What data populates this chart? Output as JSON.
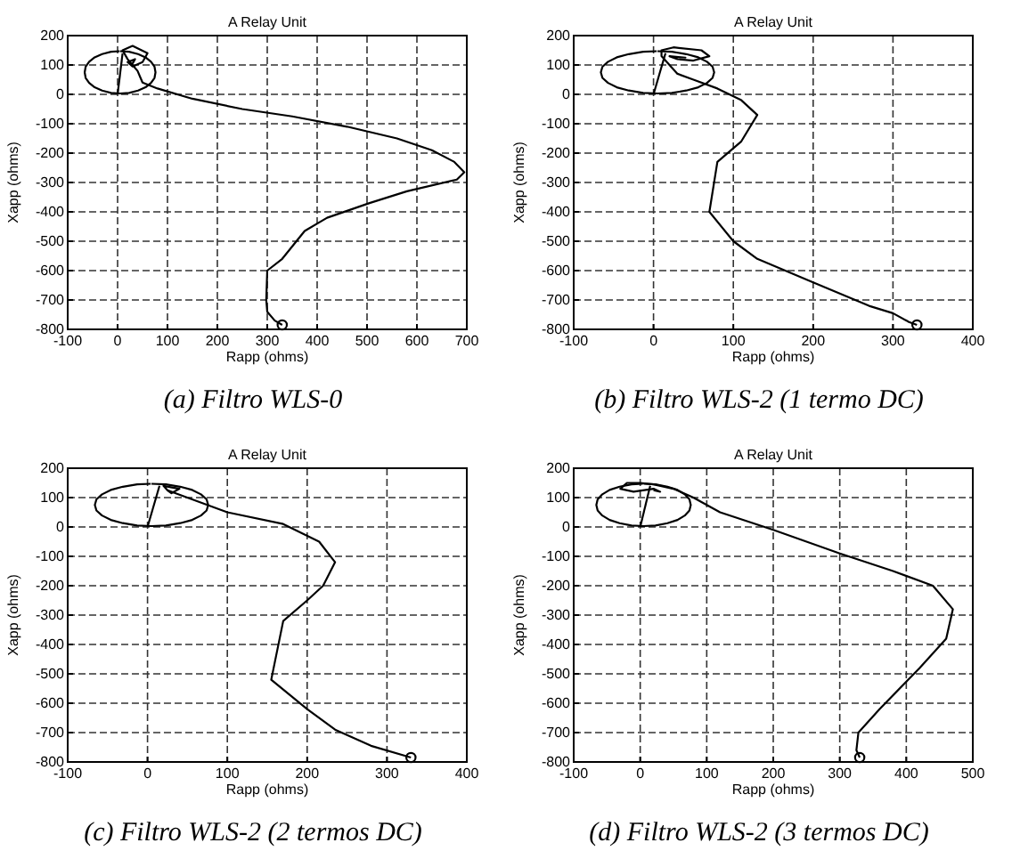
{
  "chart_data": [
    {
      "type": "line",
      "title": "A Relay Unit",
      "xlabel": "Rapp (ohms)",
      "ylabel": "Xapp (ohms)",
      "annotations": [
        "(a) Filtro WLS-0"
      ],
      "xlim": [
        -100,
        700
      ],
      "xticks": [
        -100,
        0,
        100,
        200,
        300,
        400,
        500,
        600,
        700
      ],
      "ylim": [
        -800,
        200
      ],
      "yticks": [
        -800,
        -700,
        -600,
        -500,
        -400,
        -300,
        -200,
        -100,
        0,
        100,
        200
      ],
      "grid": true,
      "marker": "none",
      "line_style": "solid",
      "series": [
        {
          "color": "#000000",
          "x": [
            330,
            315,
            300,
            298,
            300,
            330,
            375,
            420,
            505,
            580,
            680,
            695,
            675,
            630,
            560,
            460,
            350,
            250,
            150,
            80,
            50,
            40,
            30,
            20,
            10,
            30,
            60,
            50,
            30,
            20,
            35,
            30
          ],
          "values": [
            -785,
            -770,
            -740,
            -700,
            -600,
            -560,
            -465,
            -420,
            -370,
            -330,
            -290,
            -265,
            -230,
            -190,
            -150,
            -110,
            -75,
            -50,
            -15,
            20,
            40,
            80,
            100,
            120,
            150,
            165,
            140,
            110,
            95,
            110,
            120,
            105
          ]
        },
        {
          "color": "#000000",
          "x": [
            0,
            10
          ],
          "values": [
            0,
            140
          ]
        },
        {
          "color": "#000000",
          "x": [
            5,
            23,
            41,
            56,
            67,
            74,
            76,
            74,
            67,
            56,
            41,
            23,
            5,
            -13,
            -31,
            -46,
            -57,
            -64,
            -66,
            -64,
            -57,
            -46,
            -31,
            -13,
            4
          ],
          "values": [
            147,
            145,
            137,
            126,
            111,
            94,
            75,
            56,
            39,
            24,
            13,
            5,
            3,
            5,
            13,
            24,
            39,
            56,
            75,
            94,
            111,
            126,
            137,
            145,
            147
          ]
        },
        {
          "type": "scatter",
          "color": "#000000",
          "marker": "circle",
          "x": [
            330
          ],
          "values": [
            -785
          ]
        }
      ]
    },
    {
      "type": "line",
      "title": "A Relay Unit",
      "xlabel": "Rapp (ohms)",
      "ylabel": "Xapp (ohms)",
      "annotations": [
        "(b) Filtro WLS-2 (1 termo DC)"
      ],
      "xlim": [
        -100,
        400
      ],
      "xticks": [
        -100,
        0,
        100,
        200,
        300,
        400
      ],
      "ylim": [
        -800,
        200
      ],
      "yticks": [
        -800,
        -700,
        -600,
        -500,
        -400,
        -300,
        -200,
        -100,
        0,
        100,
        200
      ],
      "grid": true,
      "marker": "none",
      "line_style": "solid",
      "series": [
        {
          "color": "#000000",
          "x": [
            330,
            320,
            300,
            270,
            200,
            130,
            100,
            70,
            80,
            110,
            130,
            110,
            80,
            50,
            30,
            20,
            10,
            10,
            25,
            60,
            70,
            50,
            30,
            20,
            40,
            20
          ],
          "values": [
            -785,
            -775,
            -745,
            -720,
            -640,
            -560,
            -500,
            -400,
            -230,
            -160,
            -70,
            -20,
            20,
            50,
            70,
            100,
            130,
            150,
            160,
            150,
            130,
            115,
            120,
            130,
            125,
            130
          ]
        },
        {
          "color": "#000000",
          "x": [
            0,
            15
          ],
          "values": [
            0,
            140
          ]
        },
        {
          "color": "#000000",
          "x": [
            5,
            23,
            41,
            56,
            67,
            74,
            76,
            74,
            67,
            56,
            41,
            23,
            5,
            -13,
            -31,
            -46,
            -57,
            -64,
            -66,
            -64,
            -57,
            -46,
            -31,
            -13,
            4
          ],
          "values": [
            147,
            145,
            137,
            126,
            111,
            94,
            75,
            56,
            39,
            24,
            13,
            5,
            3,
            5,
            13,
            24,
            39,
            56,
            75,
            94,
            111,
            126,
            137,
            145,
            147
          ]
        },
        {
          "type": "scatter",
          "color": "#000000",
          "marker": "circle",
          "x": [
            330
          ],
          "values": [
            -785
          ]
        }
      ]
    },
    {
      "type": "line",
      "title": "A Relay Unit",
      "xlabel": "Rapp (ohms)",
      "ylabel": "Xapp (ohms)",
      "annotations": [
        "(c) Filtro WLS-2 (2 termos DC)"
      ],
      "xlim": [
        -100,
        400
      ],
      "xticks": [
        -100,
        0,
        100,
        200,
        300,
        400
      ],
      "ylim": [
        -800,
        200
      ],
      "yticks": [
        -800,
        -700,
        -600,
        -500,
        -400,
        -300,
        -200,
        -100,
        0,
        100,
        200
      ],
      "grid": true,
      "marker": "none",
      "line_style": "solid",
      "series": [
        {
          "color": "#000000",
          "x": [
            330,
            280,
            235,
            200,
            155,
            170,
            200,
            220,
            235,
            215,
            170,
            100,
            40,
            25,
            20,
            40,
            30,
            25
          ],
          "values": [
            -785,
            -745,
            -690,
            -620,
            -520,
            -320,
            -250,
            -200,
            -120,
            -50,
            10,
            50,
            110,
            125,
            140,
            130,
            115,
            125
          ]
        },
        {
          "color": "#000000",
          "x": [
            0,
            15
          ],
          "values": [
            0,
            140
          ]
        },
        {
          "color": "#000000",
          "x": [
            5,
            23,
            41,
            56,
            67,
            74,
            76,
            74,
            67,
            56,
            41,
            23,
            5,
            -13,
            -31,
            -46,
            -57,
            -64,
            -66,
            -64,
            -57,
            -46,
            -31,
            -13,
            4
          ],
          "values": [
            147,
            145,
            137,
            126,
            111,
            94,
            75,
            56,
            39,
            24,
            13,
            5,
            3,
            5,
            13,
            24,
            39,
            56,
            75,
            94,
            111,
            126,
            137,
            145,
            147
          ]
        },
        {
          "type": "scatter",
          "color": "#000000",
          "marker": "circle",
          "x": [
            330
          ],
          "values": [
            -785
          ]
        }
      ]
    },
    {
      "type": "line",
      "title": "A Relay Unit",
      "xlabel": "Rapp (ohms)",
      "ylabel": "Xapp (ohms)",
      "annotations": [
        "(d) Filtro WLS-2 (3 termos DC)"
      ],
      "xlim": [
        -100,
        500
      ],
      "xticks": [
        -100,
        0,
        100,
        200,
        300,
        400,
        500
      ],
      "ylim": [
        -800,
        200
      ],
      "yticks": [
        -800,
        -700,
        -600,
        -500,
        -400,
        -300,
        -200,
        -100,
        0,
        100,
        200
      ],
      "grid": true,
      "marker": "none",
      "line_style": "solid",
      "series": [
        {
          "color": "#000000",
          "x": [
            330,
            325,
            328,
            360,
            420,
            460,
            470,
            440,
            380,
            300,
            200,
            120,
            80,
            50,
            20,
            0,
            -20,
            -30,
            -10,
            20,
            30,
            20
          ],
          "values": [
            -785,
            -760,
            -700,
            -620,
            -480,
            -380,
            -280,
            -200,
            -150,
            -90,
            -10,
            50,
            100,
            130,
            145,
            150,
            150,
            130,
            120,
            130,
            120,
            125
          ]
        },
        {
          "color": "#000000",
          "x": [
            0,
            15
          ],
          "values": [
            0,
            140
          ]
        },
        {
          "color": "#000000",
          "x": [
            5,
            23,
            41,
            56,
            67,
            74,
            76,
            74,
            67,
            56,
            41,
            23,
            5,
            -13,
            -31,
            -46,
            -57,
            -64,
            -66,
            -64,
            -57,
            -46,
            -31,
            -13,
            4
          ],
          "values": [
            147,
            145,
            137,
            126,
            111,
            94,
            75,
            56,
            39,
            24,
            13,
            5,
            3,
            5,
            13,
            24,
            39,
            56,
            75,
            94,
            111,
            126,
            137,
            145,
            147
          ]
        },
        {
          "type": "scatter",
          "color": "#000000",
          "marker": "circle",
          "x": [
            330
          ],
          "values": [
            -785
          ]
        }
      ]
    }
  ]
}
